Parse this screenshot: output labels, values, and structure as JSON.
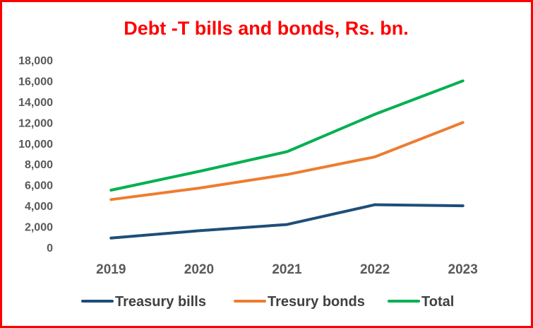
{
  "chart_data": {
    "type": "line",
    "title": "Debt -T bills and bonds, Rs. bn.",
    "xlabel": "",
    "ylabel": "",
    "categories": [
      "2019",
      "2020",
      "2021",
      "2022",
      "2023"
    ],
    "ylim": [
      0,
      18000
    ],
    "yticks": [
      "0",
      "2,000",
      "4,000",
      "6,000",
      "8,000",
      "10,000",
      "12,000",
      "14,000",
      "16,000",
      "18,000"
    ],
    "grid": false,
    "legend_position": "bottom",
    "series": [
      {
        "name": "Treasury bills",
        "color": "#1f4e79",
        "values": [
          900,
          1600,
          2200,
          4100,
          4000
        ]
      },
      {
        "name": "Tresury bonds",
        "color": "#ed7d31",
        "values": [
          4600,
          5700,
          7000,
          8700,
          12000
        ]
      },
      {
        "name": "Total",
        "color": "#00b050",
        "values": [
          5500,
          7300,
          9200,
          12800,
          16000
        ]
      }
    ]
  },
  "colors": {
    "frame_border": "#ff0000",
    "title": "#ff0000",
    "axis_text": "#595959"
  }
}
